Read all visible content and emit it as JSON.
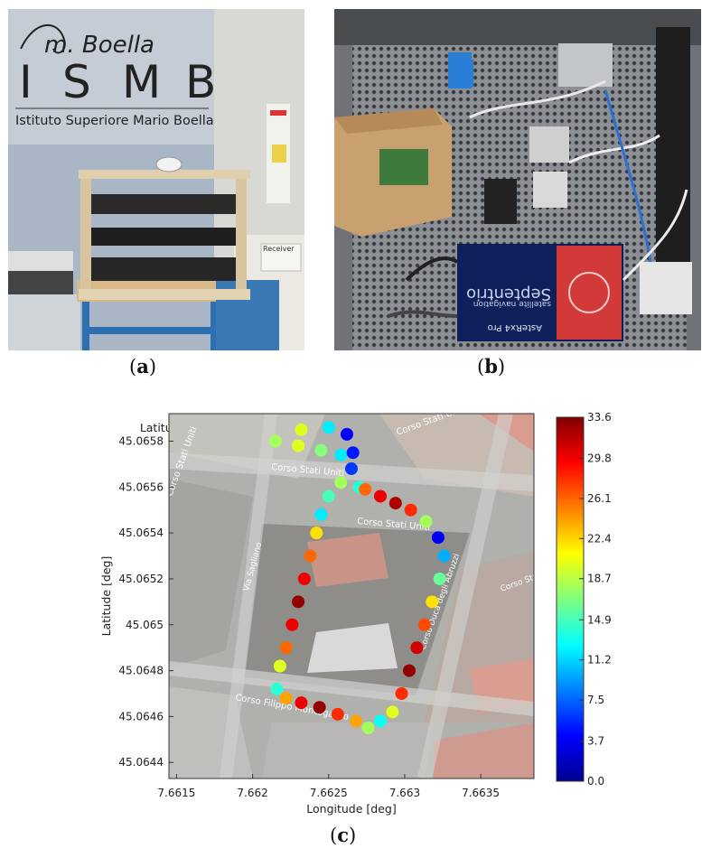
{
  "panel_a": {
    "label": "a",
    "sign": {
      "logo_signature": "m. Boella",
      "acronym": [
        "I",
        "S",
        "M",
        "B"
      ],
      "full_name": "Istituto Superiore Mario Boella"
    },
    "poster_text": "Receiver"
  },
  "panel_b": {
    "label": "b",
    "receiver_brand": "Septentrio",
    "receiver_subtitle": "satellite navigation",
    "receiver_model": "AsteRx4 Pro"
  },
  "panel_c": {
    "label": "c",
    "map_street_labels": [
      "Corso Stati Uniti",
      "Corso Stati Uniti",
      "Corso Stati Uniti",
      "Corso Stati Uniti",
      "Via Sagliano",
      "Corso Stati Uniti",
      "Corso Duca degli Abruzzi",
      "Corso Filippo Montegazzo"
    ]
  },
  "colors": {
    "colormap": [
      "#00008f",
      "#0000ff",
      "#0080ff",
      "#00ffff",
      "#80ff80",
      "#ffff00",
      "#ff8000",
      "#ff0000",
      "#800000"
    ]
  },
  "chart_data": {
    "type": "scatter",
    "title": "Latitude and Longitude coordinates vs Speed over Ground [km/h]",
    "xlabel": "Longitude [deg]",
    "ylabel": "Latitude [deg]",
    "xlim": [
      7.66145,
      7.66385
    ],
    "ylim": [
      45.06433,
      45.06592
    ],
    "x_ticks": [
      "7.6615",
      "7.662",
      "7.6625",
      "7.663",
      "7.6635"
    ],
    "x_tick_values": [
      7.6615,
      7.662,
      7.6625,
      7.663,
      7.6635
    ],
    "y_ticks": [
      "45.0644",
      "45.0646",
      "45.0648",
      "45.065",
      "45.0652",
      "45.0654",
      "45.0656",
      "45.0658"
    ],
    "y_tick_values": [
      45.0644,
      45.0646,
      45.0648,
      45.065,
      45.0652,
      45.0654,
      45.0656,
      45.0658
    ],
    "colorbar": {
      "min": 0.0,
      "max": 33.6,
      "ticks": [
        "0.0",
        "3.7",
        "7.5",
        "11.2",
        "14.9",
        "18.7",
        "22.4",
        "26.1",
        "29.8",
        "33.6"
      ],
      "tick_values": [
        0.0,
        3.7,
        7.5,
        11.2,
        14.9,
        18.7,
        22.4,
        26.1,
        29.8,
        33.6
      ]
    },
    "grid": false,
    "background": "satellite map",
    "track": [
      {
        "lon": 7.66215,
        "lat": 45.0658,
        "speed": 18
      },
      {
        "lon": 7.6623,
        "lat": 45.06578,
        "speed": 20
      },
      {
        "lon": 7.66245,
        "lat": 45.06576,
        "speed": 17
      },
      {
        "lon": 7.66258,
        "lat": 45.06574,
        "speed": 12
      },
      {
        "lon": 7.66265,
        "lat": 45.06568,
        "speed": 6
      },
      {
        "lon": 7.6627,
        "lat": 45.0656,
        "speed": 14
      },
      {
        "lon": 7.66232,
        "lat": 45.06585,
        "speed": 20
      },
      {
        "lon": 7.6625,
        "lat": 45.06586,
        "speed": 12
      },
      {
        "lon": 7.66262,
        "lat": 45.06583,
        "speed": 4
      },
      {
        "lon": 7.66266,
        "lat": 45.06575,
        "speed": 5
      },
      {
        "lon": 7.66258,
        "lat": 45.06562,
        "speed": 18
      },
      {
        "lon": 7.6625,
        "lat": 45.06556,
        "speed": 15
      },
      {
        "lon": 7.66245,
        "lat": 45.06548,
        "speed": 12
      },
      {
        "lon": 7.66242,
        "lat": 45.0654,
        "speed": 22
      },
      {
        "lon": 7.66238,
        "lat": 45.0653,
        "speed": 26
      },
      {
        "lon": 7.66234,
        "lat": 45.0652,
        "speed": 30
      },
      {
        "lon": 7.6623,
        "lat": 45.0651,
        "speed": 33
      },
      {
        "lon": 7.66226,
        "lat": 45.065,
        "speed": 30
      },
      {
        "lon": 7.66222,
        "lat": 45.0649,
        "speed": 26
      },
      {
        "lon": 7.66218,
        "lat": 45.06482,
        "speed": 20
      },
      {
        "lon": 7.66216,
        "lat": 45.06472,
        "speed": 14
      },
      {
        "lon": 7.66222,
        "lat": 45.06468,
        "speed": 24
      },
      {
        "lon": 7.66232,
        "lat": 45.06466,
        "speed": 30
      },
      {
        "lon": 7.66244,
        "lat": 45.06464,
        "speed": 33
      },
      {
        "lon": 7.66256,
        "lat": 45.06461,
        "speed": 28
      },
      {
        "lon": 7.66268,
        "lat": 45.06458,
        "speed": 24
      },
      {
        "lon": 7.66276,
        "lat": 45.06455,
        "speed": 18
      },
      {
        "lon": 7.66284,
        "lat": 45.06458,
        "speed": 13
      },
      {
        "lon": 7.66292,
        "lat": 45.06462,
        "speed": 20
      },
      {
        "lon": 7.66298,
        "lat": 45.0647,
        "speed": 28
      },
      {
        "lon": 7.66303,
        "lat": 45.0648,
        "speed": 33
      },
      {
        "lon": 7.66308,
        "lat": 45.0649,
        "speed": 31
      },
      {
        "lon": 7.66313,
        "lat": 45.065,
        "speed": 27
      },
      {
        "lon": 7.66318,
        "lat": 45.0651,
        "speed": 22
      },
      {
        "lon": 7.66323,
        "lat": 45.0652,
        "speed": 16
      },
      {
        "lon": 7.66326,
        "lat": 45.0653,
        "speed": 10
      },
      {
        "lon": 7.66322,
        "lat": 45.06538,
        "speed": 4
      },
      {
        "lon": 7.66314,
        "lat": 45.06545,
        "speed": 18
      },
      {
        "lon": 7.66304,
        "lat": 45.0655,
        "speed": 28
      },
      {
        "lon": 7.66294,
        "lat": 45.06553,
        "speed": 32
      },
      {
        "lon": 7.66284,
        "lat": 45.06556,
        "speed": 30
      },
      {
        "lon": 7.66274,
        "lat": 45.06559,
        "speed": 26
      }
    ]
  }
}
